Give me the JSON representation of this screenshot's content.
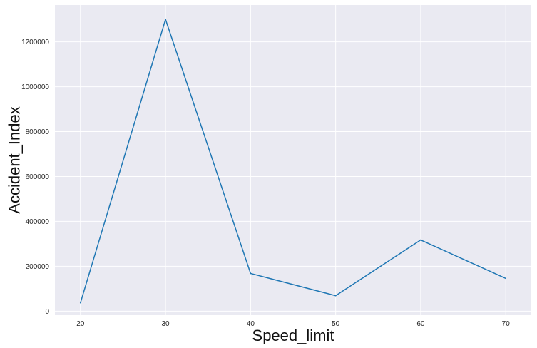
{
  "chart_data": {
    "type": "line",
    "xlabel": "Speed_limit",
    "ylabel": "Accident_Index",
    "x": [
      20,
      30,
      40,
      50,
      60,
      70
    ],
    "series": [
      {
        "values": [
          37000,
          1300000,
          168000,
          69000,
          317000,
          146000
        ]
      }
    ],
    "xlim": [
      17,
      73
    ],
    "ylim": [
      -18000,
      1364000
    ],
    "xticks": [
      20,
      30,
      40,
      50,
      60,
      70
    ],
    "yticks": [
      0,
      200000,
      400000,
      600000,
      800000,
      1000000,
      1200000
    ],
    "grid": true,
    "colors": {
      "background": "#eaeaf2",
      "grid": "#ffffff",
      "line": "#1f77b4"
    }
  }
}
